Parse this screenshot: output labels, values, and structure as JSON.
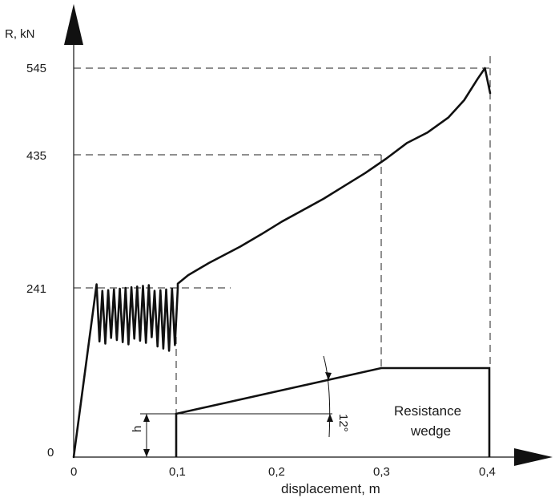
{
  "chart_data": {
    "type": "line",
    "title": "",
    "ylabel": "R, kN",
    "xlabel": "displacement, m",
    "xlim": [
      0,
      0.4
    ],
    "ylim": [
      0,
      545
    ],
    "x_tick_labels": [
      "0",
      "0,1",
      "0,2",
      "0,3",
      "0,4"
    ],
    "x_ticks": [
      0,
      0.1,
      0.2,
      0.3,
      0.4
    ],
    "y_tick_labels": [
      "0",
      "241",
      "435",
      "545"
    ],
    "y_ticks": [
      0,
      241,
      435,
      545
    ],
    "grid": false,
    "reference_lines": [
      {
        "y": 241,
        "x": 0.15
      },
      {
        "y": 435,
        "x": 0.3
      },
      {
        "y": 545,
        "x": 0.4
      }
    ],
    "series": [
      {
        "x": [
          0,
          0.022,
          0.04,
          0.06,
          0.08,
          0.095,
          0.1,
          0.11,
          0.13,
          0.16,
          0.18,
          0.2,
          0.22,
          0.24,
          0.26,
          0.28,
          0.3,
          0.32,
          0.34,
          0.36,
          0.375,
          0.388,
          0.395,
          0.4
        ],
        "y": [
          0,
          242,
          238,
          235,
          240,
          241,
          243,
          255,
          272,
          295,
          312,
          330,
          346,
          362,
          380,
          398,
          418,
          440,
          455,
          476,
          500,
          530,
          545,
          510
        ],
        "oscillation": {
          "x_from": 0.022,
          "x_to": 0.1,
          "y_min": 145,
          "y_max": 241
        }
      }
    ],
    "annotations": {
      "wedge_label": "Resistance\nwedge",
      "wedge_label_line1": "Resistance",
      "wedge_label_line2": "wedge",
      "angle_label": "12°",
      "height_label": "h"
    }
  }
}
